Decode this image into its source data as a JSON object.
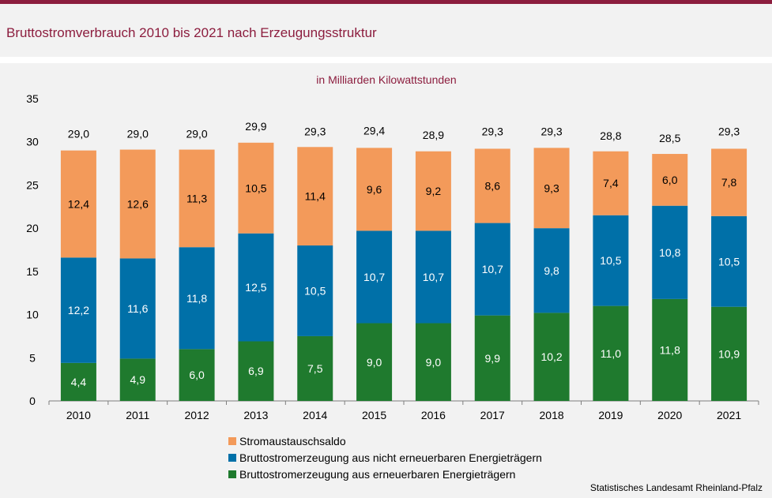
{
  "header": {
    "title": "Bruttostromverbrauch 2010 bis 2021 nach Erzeugungsstruktur"
  },
  "source": "Statistisches Landesamt Rheinland-Pfalz",
  "colors": {
    "title": "#8c1d3e",
    "orange": "#f39a5a",
    "blue": "#0070a8",
    "green": "#1f7a2e"
  },
  "chart_data": {
    "type": "bar",
    "stacked": true,
    "subtitle": "in Milliarden Kilowattstunden",
    "categories": [
      "2010",
      "2011",
      "2012",
      "2013",
      "2014",
      "2015",
      "2016",
      "2017",
      "2018",
      "2019",
      "2020",
      "2021"
    ],
    "series": [
      {
        "name": "Bruttostromerzeugung aus erneuerbaren Energieträgern",
        "color": "#1f7a2e",
        "values": [
          4.4,
          4.9,
          6.0,
          6.9,
          7.5,
          9.0,
          9.0,
          9.9,
          10.2,
          11.0,
          11.8,
          10.9
        ],
        "labels": [
          "4,4",
          "4,9",
          "6,0",
          "6,9",
          "7,5",
          "9,0",
          "9,0",
          "9,9",
          "10,2",
          "11,0",
          "11,8",
          "10,9"
        ]
      },
      {
        "name": "Bruttostromerzeugung aus nicht erneuerbaren Energieträgern",
        "color": "#0070a8",
        "values": [
          12.2,
          11.6,
          11.8,
          12.5,
          10.5,
          10.7,
          10.7,
          10.7,
          9.8,
          10.5,
          10.8,
          10.5
        ],
        "labels": [
          "12,2",
          "11,6",
          "11,8",
          "12,5",
          "10,5",
          "10,7",
          "10,7",
          "10,7",
          "9,8",
          "10,5",
          "10,8",
          "10,5"
        ]
      },
      {
        "name": "Stromaustauschsaldo",
        "color": "#f39a5a",
        "values": [
          12.4,
          12.6,
          11.3,
          10.5,
          11.4,
          9.6,
          9.2,
          8.6,
          9.3,
          7.4,
          6.0,
          7.8
        ],
        "labels": [
          "12,4",
          "12,6",
          "11,3",
          "10,5",
          "11,4",
          "9,6",
          "9,2",
          "8,6",
          "9,3",
          "7,4",
          "6,0",
          "7,8"
        ]
      }
    ],
    "totals": [
      29.0,
      29.0,
      29.0,
      29.9,
      29.3,
      29.4,
      28.9,
      29.3,
      29.3,
      28.8,
      28.5,
      29.3
    ],
    "total_labels": [
      "29,0",
      "29,0",
      "29,0",
      "29,9",
      "29,3",
      "29,4",
      "28,9",
      "29,3",
      "29,3",
      "28,8",
      "28,5",
      "29,3"
    ],
    "ylim": [
      0,
      35
    ],
    "yticks": [
      "0",
      "5",
      "10",
      "15",
      "20",
      "25",
      "30",
      "35"
    ],
    "grid": false,
    "legend": [
      {
        "label": "Stromaustauschsaldo",
        "color": "#f39a5a"
      },
      {
        "label": "Bruttostromerzeugung aus nicht erneuerbaren Energieträgern",
        "color": "#0070a8"
      },
      {
        "label": "Bruttostromerzeugung aus erneuerbaren Energieträgern",
        "color": "#1f7a2e"
      }
    ],
    "legend_position": "bottom"
  }
}
